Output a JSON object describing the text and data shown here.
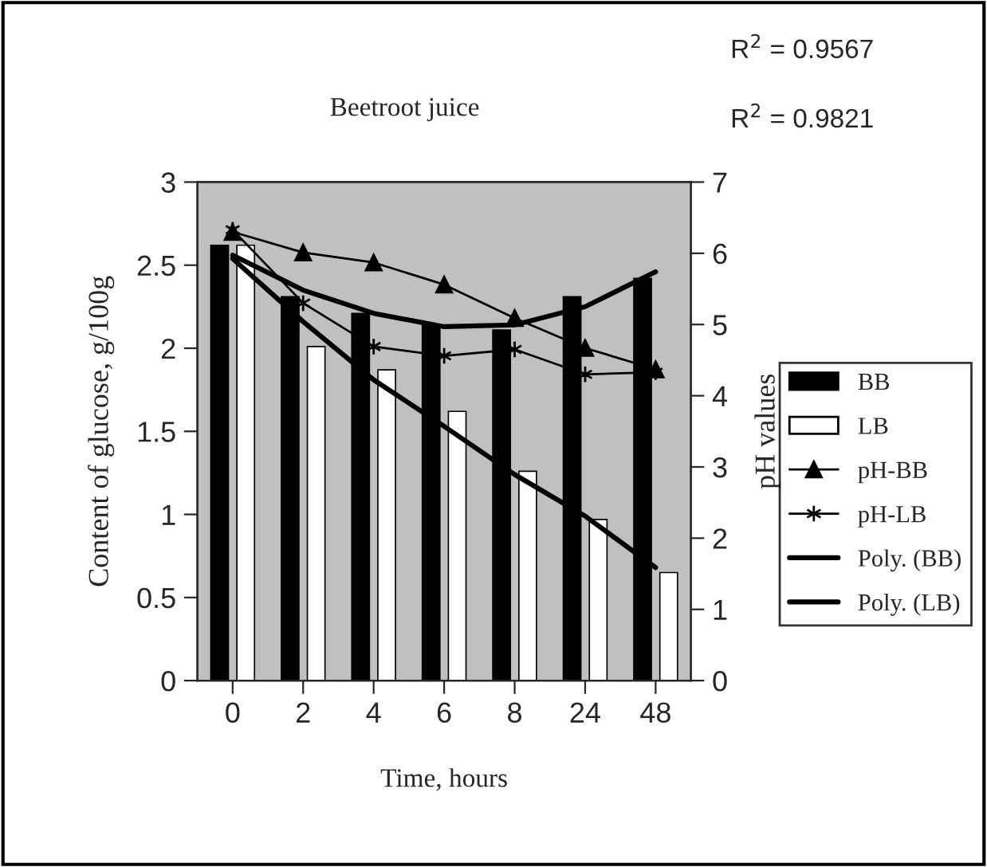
{
  "chart_data": {
    "type": "bar",
    "title": "Beetroot juice",
    "xlabel": "Time, hours",
    "ylabel": "Content of glucose, g/100g",
    "y2label": "pH values",
    "categories": [
      "0",
      "2",
      "4",
      "6",
      "8",
      "24",
      "48"
    ],
    "series": [
      {
        "name": "BB",
        "color": "#000000",
        "values": [
          2.62,
          2.31,
          2.21,
          2.14,
          2.11,
          2.31,
          2.42
        ]
      },
      {
        "name": "LB",
        "color": "#ffffff",
        "values": [
          2.62,
          2.01,
          1.87,
          1.62,
          1.26,
          0.97,
          0.65
        ]
      },
      {
        "name": "pH-BB",
        "type": "line",
        "axis": "y2",
        "marker": "triangle",
        "color": "#000000",
        "values": [
          6.3,
          6.01,
          5.87,
          5.56,
          5.09,
          4.67,
          4.37
        ]
      },
      {
        "name": "pH-LB",
        "type": "line",
        "axis": "y2",
        "marker": "cross",
        "color": "#000000",
        "values": [
          6.33,
          5.3,
          4.69,
          4.56,
          4.65,
          4.3,
          4.33
        ]
      },
      {
        "name": "Poly. (BB)",
        "type": "line",
        "marker": "none",
        "color": "#000000",
        "values": [
          2.56,
          2.35,
          2.21,
          2.13,
          2.14,
          2.25,
          2.46
        ]
      },
      {
        "name": "Poly. (LB)",
        "type": "line",
        "marker": "none",
        "color": "#000000",
        "values": [
          2.54,
          2.16,
          1.81,
          1.53,
          1.24,
          0.99,
          0.68
        ]
      }
    ],
    "ylim": [
      0,
      3
    ],
    "yticks": [
      0,
      0.5,
      1,
      1.5,
      2,
      2.5,
      3
    ],
    "y2lim": [
      0,
      7
    ],
    "y2ticks": [
      0,
      1,
      2,
      3,
      4,
      5,
      6,
      7
    ],
    "annotations": [
      "R$^{2}$ = 0.9567",
      "R$^{2}$ = 0.9821"
    ],
    "legend": "right",
    "grid": false
  }
}
